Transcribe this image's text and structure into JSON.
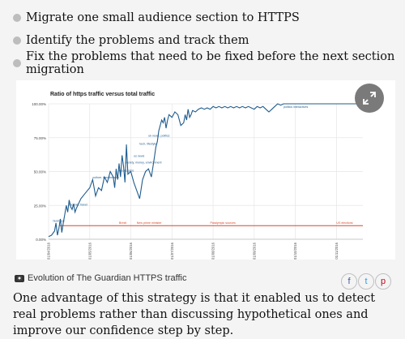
{
  "bullets": [
    "Migrate one small audience section to HTTPS",
    "Identify the problems and track them",
    "Fix the problems that need to be fixed before the next section migration"
  ],
  "caption": "Evolution of The Guardian HTTPS traffic",
  "share": {
    "facebook": "f",
    "twitter": "t",
    "pinterest": "p"
  },
  "paragraph": "One advantage of this strategy is that it enabled us to detect real problems rather than discussing hypothetical ones and improve our confidence step by step.",
  "colors": {
    "line": "#1f5c8e",
    "threshold": "#d9482b",
    "accent_bg": "#f4f4f4"
  },
  "chart_data": {
    "type": "line",
    "title": "Ratio of https traffic versus total traffic",
    "ylim": [
      0,
      100
    ],
    "yticks": [
      "0.00%",
      "25.00%",
      "50.00%",
      "75.00%",
      "100.00%"
    ],
    "xticks": [
      "01/04/2016",
      "01/05/2016",
      "01/06/2016",
      "01/07/2016",
      "01/08/2016",
      "01/09/2016",
      "01/10/2016",
      "01/11/2016"
    ],
    "series": [
      {
        "values": [
          [
            0,
            2
          ],
          [
            2,
            3
          ],
          [
            4,
            6
          ],
          [
            5,
            12
          ],
          [
            6,
            3
          ],
          [
            7,
            8
          ],
          [
            8,
            15
          ],
          [
            9,
            5
          ],
          [
            10,
            12
          ],
          [
            11,
            18
          ],
          [
            12,
            25
          ],
          [
            13,
            20
          ],
          [
            14,
            29
          ],
          [
            15,
            24
          ],
          [
            16,
            22
          ],
          [
            17,
            26
          ],
          [
            18,
            20
          ],
          [
            19,
            23
          ],
          [
            22,
            30
          ],
          [
            25,
            34
          ],
          [
            28,
            38
          ],
          [
            30,
            44
          ],
          [
            32,
            32
          ],
          [
            34,
            38
          ],
          [
            36,
            36
          ],
          [
            38,
            46
          ],
          [
            40,
            42
          ],
          [
            42,
            50
          ],
          [
            44,
            46
          ],
          [
            45,
            38
          ],
          [
            46,
            52
          ],
          [
            47,
            44
          ],
          [
            48,
            56
          ],
          [
            49,
            46
          ],
          [
            50,
            62
          ],
          [
            51,
            54
          ],
          [
            52,
            42
          ],
          [
            53,
            70
          ],
          [
            54,
            48
          ],
          [
            56,
            50
          ],
          [
            58,
            42
          ],
          [
            60,
            36
          ],
          [
            62,
            30
          ],
          [
            64,
            44
          ],
          [
            66,
            50
          ],
          [
            68,
            52
          ],
          [
            70,
            46
          ],
          [
            72,
            60
          ],
          [
            73,
            68
          ],
          [
            74,
            72
          ],
          [
            75,
            80
          ],
          [
            76,
            84
          ],
          [
            77,
            88
          ],
          [
            78,
            86
          ],
          [
            79,
            90
          ],
          [
            80,
            82
          ],
          [
            81,
            88
          ],
          [
            82,
            92
          ],
          [
            84,
            90
          ],
          [
            86,
            94
          ],
          [
            88,
            92
          ],
          [
            90,
            84
          ],
          [
            92,
            86
          ],
          [
            93,
            92
          ],
          [
            94,
            88
          ],
          [
            95,
            96
          ],
          [
            96,
            90
          ],
          [
            97,
            92
          ],
          [
            98,
            95
          ],
          [
            100,
            94
          ],
          [
            102,
            96
          ],
          [
            104,
            97
          ],
          [
            106,
            96
          ],
          [
            108,
            97
          ],
          [
            110,
            96
          ],
          [
            112,
            98
          ],
          [
            114,
            97
          ],
          [
            116,
            98
          ],
          [
            118,
            97
          ],
          [
            120,
            98
          ],
          [
            122,
            97
          ],
          [
            124,
            98
          ],
          [
            126,
            97
          ],
          [
            128,
            98
          ],
          [
            130,
            97
          ],
          [
            132,
            98
          ],
          [
            134,
            97
          ],
          [
            136,
            98
          ],
          [
            138,
            97
          ],
          [
            140,
            96
          ],
          [
            142,
            98
          ],
          [
            144,
            97
          ],
          [
            146,
            98
          ],
          [
            148,
            96
          ],
          [
            150,
            94
          ],
          [
            152,
            96
          ],
          [
            154,
            98
          ],
          [
            156,
            100
          ],
          [
            158,
            99
          ],
          [
            160,
            100
          ],
          [
            170,
            100
          ],
          [
            180,
            100
          ],
          [
            190,
            100
          ],
          [
            200,
            100
          ],
          [
            210,
            100
          ],
          [
            214,
            100
          ]
        ]
      }
    ],
    "threshold": {
      "y": 10
    },
    "annotations": [
      {
        "x": 3,
        "y": 12,
        "text": "business"
      },
      {
        "x": 14,
        "y": 24,
        "text": "football, travel"
      },
      {
        "x": 30,
        "y": 44,
        "text": "culture, membership"
      },
      {
        "x": 48,
        "y": 49,
        "text": "books, jobs"
      },
      {
        "x": 52,
        "y": 55,
        "text": "society, money, environment"
      },
      {
        "x": 58,
        "y": 60,
        "text": "us news"
      },
      {
        "x": 62,
        "y": 69,
        "text": "tech, lifestyle"
      },
      {
        "x": 68,
        "y": 75,
        "text": "uk news, politics"
      },
      {
        "x": 160,
        "y": 96,
        "text": "politics interactives"
      }
    ],
    "events": [
      {
        "x": 48,
        "text": "Brexit"
      },
      {
        "x": 60,
        "text": "New prime minister"
      },
      {
        "x": 110,
        "text": "Paralympic sources"
      },
      {
        "x": 196,
        "text": "US elections"
      }
    ]
  }
}
